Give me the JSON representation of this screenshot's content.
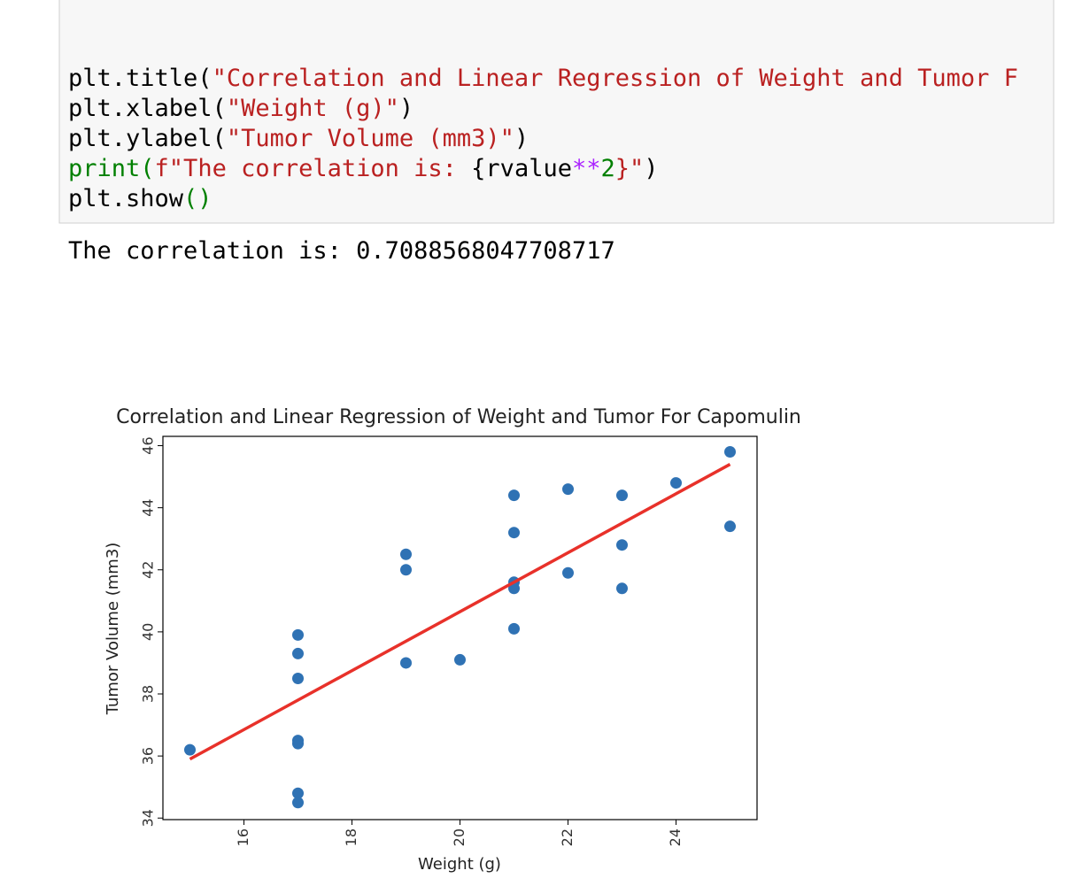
{
  "code": {
    "lines": [
      [
        {
          "text": "plt.title(",
          "color": "#000000"
        },
        {
          "text": "\"Correlation and Linear Regression of Weight and Tumor F",
          "color": "#ba2121"
        }
      ],
      [
        {
          "text": "plt.xlabel(",
          "color": "#000000"
        },
        {
          "text": "\"Weight (g)\"",
          "color": "#ba2121"
        },
        {
          "text": ")",
          "color": "#000000"
        }
      ],
      [
        {
          "text": "plt.ylabel(",
          "color": "#000000"
        },
        {
          "text": "\"Tumor Volume (mm3)\"",
          "color": "#ba2121"
        },
        {
          "text": ")",
          "color": "#000000"
        }
      ],
      [
        {
          "text": "print(",
          "color": "#008000"
        },
        {
          "text": "f\"The correlation is: ",
          "color": "#ba2121"
        },
        {
          "text": "{rvalue",
          "color": "#000000"
        },
        {
          "text": "**",
          "color": "#aa22ff"
        },
        {
          "text": "2",
          "color": "#008000"
        },
        {
          "text": "}\"",
          "color": "#ba2121"
        },
        {
          "text": ")",
          "color": "#000000"
        }
      ],
      [
        {
          "text": "plt.show",
          "color": "#000000"
        },
        {
          "text": "()",
          "color": "#008000"
        }
      ]
    ]
  },
  "output": "The correlation is: 0.7088568047708717",
  "chart_data": {
    "type": "scatter",
    "title": "Correlation and Linear Regression of Weight and Tumor For Capomulin",
    "xlabel": "Weight (g)",
    "ylabel": "Tumor Volume (mm3)",
    "xlim": [
      14.5,
      25.5
    ],
    "ylim": [
      33.95,
      46.3
    ],
    "xticks": [
      16,
      18,
      20,
      22,
      24
    ],
    "yticks": [
      34,
      36,
      38,
      40,
      42,
      44,
      46
    ],
    "series": [
      {
        "type": "scatter",
        "color": "#2f72b4",
        "x": [
          15,
          17,
          17,
          17,
          17,
          17,
          17,
          17,
          19,
          19,
          19,
          20,
          21,
          21,
          21,
          21,
          21,
          22,
          22,
          23,
          23,
          23,
          24,
          25,
          25
        ],
        "values": [
          36.2,
          39.9,
          39.3,
          38.5,
          36.5,
          36.4,
          34.8,
          34.5,
          42.5,
          42.0,
          39.0,
          39.1,
          44.4,
          43.2,
          41.6,
          41.4,
          40.1,
          44.6,
          41.9,
          44.4,
          42.8,
          41.4,
          44.8,
          45.8,
          43.4
        ]
      },
      {
        "type": "line",
        "color": "#e8312a",
        "x": [
          15,
          25
        ],
        "values": [
          35.9,
          45.4
        ]
      }
    ]
  }
}
